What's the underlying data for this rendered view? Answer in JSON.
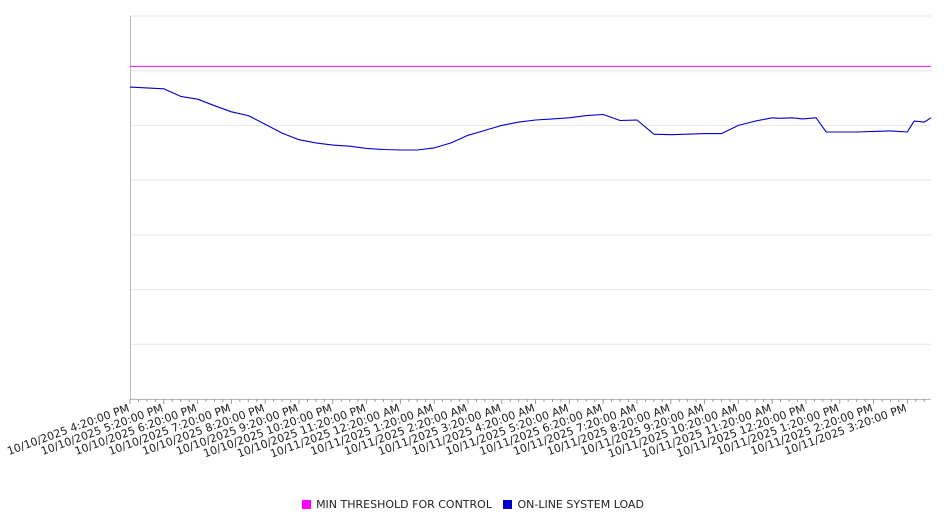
{
  "chart_data": {
    "type": "line",
    "title": "",
    "xlabel": "",
    "ylabel": "",
    "ylim": [
      0,
      7
    ],
    "grid": true,
    "legend_position": "bottom-center",
    "x_ticks": [
      "10/10/2025 4:20:00 PM",
      "10/10/2025 5:20:00 PM",
      "10/10/2025 6:20:00 PM",
      "10/10/2025 7:20:00 PM",
      "10/10/2025 8:20:00 PM",
      "10/10/2025 9:20:00 PM",
      "10/10/2025 10:20:00 PM",
      "10/10/2025 11:20:00 PM",
      "10/11/2025 12:20:00 AM",
      "10/11/2025 1:20:00 AM",
      "10/11/2025 2:20:00 AM",
      "10/11/2025 3:20:00 AM",
      "10/11/2025 4:20:00 AM",
      "10/11/2025 5:20:00 AM",
      "10/11/2025 6:20:00 AM",
      "10/11/2025 7:20:00 AM",
      "10/11/2025 8:20:00 AM",
      "10/11/2025 9:20:00 AM",
      "10/11/2025 10:20:00 AM",
      "10/11/2025 11:20:00 AM",
      "10/11/2025 12:20:00 PM",
      "10/11/2025 1:20:00 PM",
      "10/11/2025 2:20:00 PM",
      "10/11/2025 3:20:00 PM"
    ],
    "x_hours": [
      0,
      1,
      1.5,
      2,
      2.5,
      3,
      3.5,
      4,
      4.5,
      5,
      5.5,
      6,
      6.5,
      7,
      7.5,
      8,
      8.5,
      9,
      9.5,
      10,
      10.5,
      11,
      11.5,
      12,
      12.5,
      13,
      13.5,
      14,
      14.5,
      15,
      15.5,
      16,
      16.5,
      17,
      17.5,
      18,
      18.5,
      19,
      19.2,
      19.6,
      19.9,
      20.3,
      20.6,
      21,
      21.5,
      22,
      22.5,
      23,
      23.2,
      23.5,
      23.7
    ],
    "series": [
      {
        "name": "MIN THRESHOLD FOR CONTROL",
        "color": "#ff00ff",
        "x_hours": [
          0,
          23.7
        ],
        "values": [
          6.08,
          6.08
        ]
      },
      {
        "name": "ON-LINE SYSTEM LOAD",
        "color": "#0000cc",
        "values": [
          5.7,
          5.67,
          5.53,
          5.48,
          5.36,
          5.25,
          5.18,
          5.02,
          4.86,
          4.74,
          4.68,
          4.64,
          4.62,
          4.58,
          4.56,
          4.55,
          4.55,
          4.59,
          4.68,
          4.82,
          4.91,
          5.0,
          5.06,
          5.1,
          5.12,
          5.14,
          5.18,
          5.2,
          5.09,
          5.1,
          4.84,
          4.83,
          4.84,
          4.85,
          4.85,
          5.0,
          5.08,
          5.14,
          5.13,
          5.14,
          5.12,
          5.14,
          4.88,
          4.88,
          4.88,
          4.89,
          4.9,
          4.88,
          5.08,
          5.06,
          5.14
        ]
      }
    ]
  }
}
